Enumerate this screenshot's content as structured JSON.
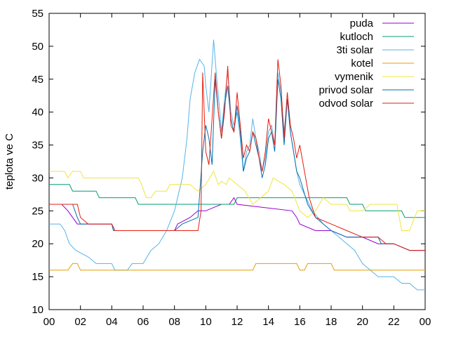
{
  "chart_data": {
    "type": "line",
    "ylabel": "teplota ve C",
    "xlabel": "",
    "title": "",
    "xlim": [
      0,
      24
    ],
    "ylim": [
      10,
      55
    ],
    "x_tick_labels": [
      "00",
      "02",
      "04",
      "06",
      "08",
      "10",
      "12",
      "14",
      "16",
      "18",
      "20",
      "22",
      "00"
    ],
    "y_tick_labels": [
      "10",
      "15",
      "20",
      "25",
      "30",
      "35",
      "40",
      "45",
      "50",
      "55"
    ],
    "legend_position": "top-right",
    "grid": false,
    "series": [
      {
        "name": "puda",
        "color": "#9400d3",
        "points": [
          [
            0,
            26
          ],
          [
            0.8,
            26
          ],
          [
            1.2,
            25
          ],
          [
            1.5,
            24
          ],
          [
            1.8,
            23
          ],
          [
            4,
            23
          ],
          [
            4.2,
            22
          ],
          [
            8,
            22
          ],
          [
            8.2,
            23
          ],
          [
            9,
            24
          ],
          [
            9.5,
            25
          ],
          [
            10,
            25
          ],
          [
            10.5,
            25.5
          ],
          [
            11,
            26
          ],
          [
            11.5,
            26
          ],
          [
            11.8,
            27
          ],
          [
            12,
            26
          ],
          [
            15.5,
            25
          ],
          [
            15.8,
            24
          ],
          [
            16,
            23
          ],
          [
            17,
            22
          ],
          [
            18,
            22
          ],
          [
            19,
            21
          ],
          [
            20,
            21
          ],
          [
            21,
            20
          ],
          [
            22,
            20
          ],
          [
            23,
            19
          ],
          [
            24,
            19
          ]
        ]
      },
      {
        "name": "kutloch",
        "color": "#009e73",
        "points": [
          [
            0,
            29
          ],
          [
            1.3,
            29
          ],
          [
            1.5,
            28
          ],
          [
            3,
            28
          ],
          [
            3.2,
            27
          ],
          [
            5.5,
            27
          ],
          [
            5.7,
            26
          ],
          [
            11.8,
            26
          ],
          [
            12,
            27
          ],
          [
            19,
            27
          ],
          [
            19.2,
            26
          ],
          [
            20,
            26
          ],
          [
            20.2,
            25
          ],
          [
            22.5,
            25
          ],
          [
            22.7,
            24
          ],
          [
            24,
            24
          ]
        ]
      },
      {
        "name": "3ti solar",
        "color": "#56b4e9",
        "points": [
          [
            0,
            23
          ],
          [
            0.7,
            23
          ],
          [
            1,
            22
          ],
          [
            1.3,
            20
          ],
          [
            1.7,
            19
          ],
          [
            2.5,
            18
          ],
          [
            3,
            17
          ],
          [
            4,
            17
          ],
          [
            4.2,
            16
          ],
          [
            5,
            16
          ],
          [
            5.3,
            17
          ],
          [
            6,
            17
          ],
          [
            6.5,
            19
          ],
          [
            7,
            20
          ],
          [
            7.5,
            22
          ],
          [
            8,
            25
          ],
          [
            8.5,
            30
          ],
          [
            8.8,
            36
          ],
          [
            9,
            42
          ],
          [
            9.3,
            46
          ],
          [
            9.6,
            48
          ],
          [
            9.9,
            47
          ],
          [
            10,
            44
          ],
          [
            10.2,
            40
          ],
          [
            10.5,
            51
          ],
          [
            10.7,
            45
          ],
          [
            10.9,
            40
          ],
          [
            11,
            37
          ],
          [
            11.2,
            42
          ],
          [
            11.4,
            46
          ],
          [
            11.6,
            40
          ],
          [
            11.8,
            38
          ],
          [
            12,
            40
          ],
          [
            12.2,
            36
          ],
          [
            12.4,
            31
          ],
          [
            12.6,
            34
          ],
          [
            12.8,
            35
          ],
          [
            13,
            39
          ],
          [
            13.2,
            36
          ],
          [
            13.4,
            34
          ],
          [
            13.6,
            31
          ],
          [
            13.8,
            33
          ],
          [
            14,
            37
          ],
          [
            14.2,
            38
          ],
          [
            14.4,
            35
          ],
          [
            14.6,
            46
          ],
          [
            14.8,
            43
          ],
          [
            15,
            37
          ],
          [
            15.2,
            42
          ],
          [
            15.4,
            37
          ],
          [
            15.6,
            34
          ],
          [
            15.8,
            31
          ],
          [
            16,
            29
          ],
          [
            16.4,
            27
          ],
          [
            16.8,
            25
          ],
          [
            17.5,
            23
          ],
          [
            18.5,
            21
          ],
          [
            19.5,
            19
          ],
          [
            20,
            17
          ],
          [
            20.5,
            16
          ],
          [
            21,
            15
          ],
          [
            22,
            15
          ],
          [
            22.5,
            14
          ],
          [
            23,
            14
          ],
          [
            23.5,
            13
          ],
          [
            24,
            13
          ]
        ]
      },
      {
        "name": "kotel",
        "color": "#e69f00",
        "points": [
          [
            0,
            16
          ],
          [
            1.2,
            16
          ],
          [
            1.5,
            17
          ],
          [
            1.8,
            17
          ],
          [
            2,
            16
          ],
          [
            13,
            16
          ],
          [
            13.2,
            17
          ],
          [
            15.8,
            17
          ],
          [
            16,
            16
          ],
          [
            16.3,
            16
          ],
          [
            16.5,
            17
          ],
          [
            18,
            17
          ],
          [
            18.2,
            16
          ],
          [
            24,
            16
          ]
        ]
      },
      {
        "name": "vymenik",
        "color": "#f0e442",
        "points": [
          [
            0,
            31
          ],
          [
            1,
            31
          ],
          [
            1.2,
            30
          ],
          [
            1.5,
            31
          ],
          [
            2,
            31
          ],
          [
            2.2,
            30
          ],
          [
            5.7,
            30
          ],
          [
            5.9,
            29
          ],
          [
            6.2,
            27
          ],
          [
            6.5,
            27
          ],
          [
            6.8,
            28
          ],
          [
            7.5,
            28
          ],
          [
            7.7,
            29
          ],
          [
            9,
            29
          ],
          [
            9.5,
            28
          ],
          [
            10,
            29
          ],
          [
            10.5,
            31
          ],
          [
            10.8,
            29
          ],
          [
            11,
            29.5
          ],
          [
            11.3,
            29
          ],
          [
            11.5,
            30
          ],
          [
            12,
            29
          ],
          [
            12.5,
            28
          ],
          [
            13,
            26
          ],
          [
            13.5,
            27
          ],
          [
            14,
            28
          ],
          [
            14.3,
            30
          ],
          [
            15,
            29
          ],
          [
            15.5,
            28
          ],
          [
            16,
            25
          ],
          [
            16.5,
            24
          ],
          [
            17,
            25
          ],
          [
            17.5,
            27
          ],
          [
            18,
            26
          ],
          [
            19,
            26
          ],
          [
            19.2,
            25
          ],
          [
            20,
            25
          ],
          [
            20.5,
            26
          ],
          [
            22.2,
            26
          ],
          [
            22.5,
            22
          ],
          [
            23,
            22
          ],
          [
            23.5,
            25
          ],
          [
            24,
            25
          ]
        ]
      },
      {
        "name": "privod solar",
        "color": "#0072b2",
        "points": [
          [
            0,
            26
          ],
          [
            1.5,
            26
          ],
          [
            1.8,
            24
          ],
          [
            2,
            23
          ],
          [
            4,
            23
          ],
          [
            4.1,
            22
          ],
          [
            8,
            22
          ],
          [
            8.5,
            23
          ],
          [
            9.5,
            24
          ],
          [
            9.8,
            34
          ],
          [
            10,
            38
          ],
          [
            10.2,
            36
          ],
          [
            10.4,
            32
          ],
          [
            10.6,
            45
          ],
          [
            10.8,
            40
          ],
          [
            11,
            36
          ],
          [
            11.2,
            41
          ],
          [
            11.4,
            44
          ],
          [
            11.6,
            39
          ],
          [
            11.8,
            37
          ],
          [
            12,
            41
          ],
          [
            12.2,
            37
          ],
          [
            12.4,
            31
          ],
          [
            12.6,
            33
          ],
          [
            12.8,
            34
          ],
          [
            13,
            37
          ],
          [
            13.2,
            35
          ],
          [
            13.4,
            33
          ],
          [
            13.6,
            30
          ],
          [
            13.8,
            32
          ],
          [
            14,
            36
          ],
          [
            14.2,
            37
          ],
          [
            14.4,
            34
          ],
          [
            14.6,
            45
          ],
          [
            14.8,
            42
          ],
          [
            15,
            35
          ],
          [
            15.2,
            42
          ],
          [
            15.4,
            37
          ],
          [
            15.6,
            34
          ],
          [
            15.8,
            31
          ],
          [
            16,
            30
          ],
          [
            16.5,
            26
          ],
          [
            17,
            24
          ],
          [
            18,
            22
          ],
          [
            19,
            21
          ],
          [
            21,
            21
          ],
          [
            21.2,
            20
          ],
          [
            22,
            20
          ],
          [
            23,
            19
          ],
          [
            24,
            19
          ]
        ]
      },
      {
        "name": "odvod solar",
        "color": "#e51e10",
        "points": [
          [
            0,
            26
          ],
          [
            1.8,
            26
          ],
          [
            2,
            24
          ],
          [
            2.5,
            23
          ],
          [
            4,
            23
          ],
          [
            4.2,
            22
          ],
          [
            9.5,
            22
          ],
          [
            9.7,
            25
          ],
          [
            9.8,
            46
          ],
          [
            10,
            34
          ],
          [
            10.2,
            32
          ],
          [
            10.4,
            39
          ],
          [
            10.6,
            46
          ],
          [
            10.8,
            40
          ],
          [
            11,
            36
          ],
          [
            11.2,
            40
          ],
          [
            11.4,
            47
          ],
          [
            11.6,
            38
          ],
          [
            11.8,
            37
          ],
          [
            12,
            43
          ],
          [
            12.2,
            38
          ],
          [
            12.4,
            33
          ],
          [
            12.6,
            35
          ],
          [
            12.8,
            34
          ],
          [
            13,
            37
          ],
          [
            13.2,
            36
          ],
          [
            13.4,
            33
          ],
          [
            13.6,
            31
          ],
          [
            13.8,
            34
          ],
          [
            14,
            39
          ],
          [
            14.2,
            37
          ],
          [
            14.4,
            35
          ],
          [
            14.6,
            48
          ],
          [
            14.8,
            44
          ],
          [
            15,
            36
          ],
          [
            15.2,
            43
          ],
          [
            15.4,
            38
          ],
          [
            15.6,
            36
          ],
          [
            15.8,
            33
          ],
          [
            16,
            35
          ],
          [
            16.3,
            31
          ],
          [
            16.6,
            27
          ],
          [
            17,
            24
          ],
          [
            18,
            23
          ],
          [
            19,
            22
          ],
          [
            20,
            21
          ],
          [
            21,
            21
          ],
          [
            21.5,
            20
          ],
          [
            22,
            20
          ],
          [
            23,
            19
          ],
          [
            24,
            19
          ]
        ]
      }
    ]
  }
}
